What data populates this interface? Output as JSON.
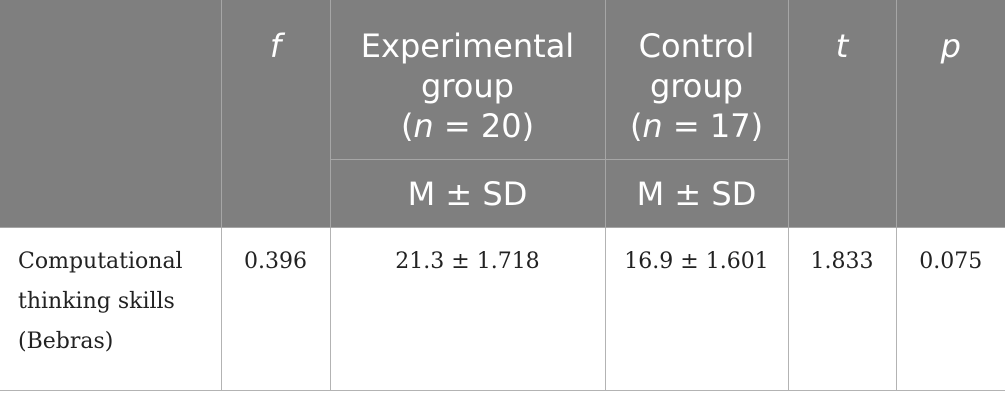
{
  "header": {
    "blank": "",
    "f": "f",
    "experimental": {
      "line1": "Experimental",
      "line2": "group",
      "n_var": "n",
      "n_rest": " = 20)",
      "open_paren": "("
    },
    "control": {
      "line1": "Control",
      "line2": "group",
      "n_var": "n",
      "n_rest": " = 17)",
      "open_paren": "("
    },
    "t": "t",
    "p": "p",
    "msd_experimental": "M ± SD",
    "msd_control": "M ± SD"
  },
  "rows": [
    {
      "label_line1": "Computational",
      "label_line2": "thinking skills",
      "label_line3": "(Bebras)",
      "f": "0.396",
      "experimental": "21.3 ± 1.718",
      "control": "16.9 ± 1.601",
      "t": "1.833",
      "p": "0.075"
    }
  ]
}
